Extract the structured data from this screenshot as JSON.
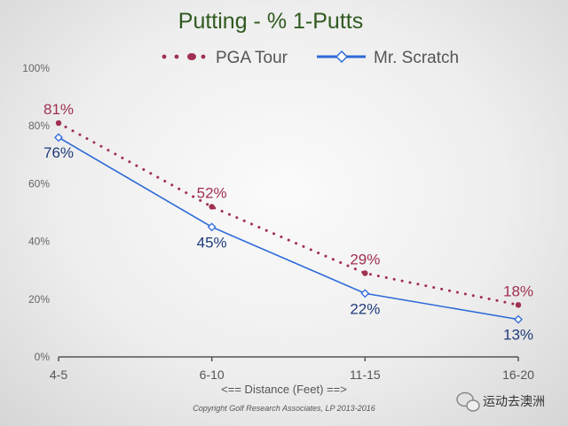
{
  "chart_data": {
    "type": "line",
    "title": "Putting - % 1-Putts",
    "categories": [
      "4-5",
      "6-10",
      "11-15",
      "16-20"
    ],
    "xlabel": "<== Distance (Feet) ==>",
    "ylabel": "",
    "ylim": [
      0,
      100
    ],
    "yticks": [
      "0%",
      "20%",
      "40%",
      "60%",
      "80%",
      "100%"
    ],
    "yticks_values": [
      0,
      20,
      40,
      60,
      80,
      100
    ],
    "series": [
      {
        "name": "PGA Tour",
        "values": [
          81,
          52,
          29,
          18
        ],
        "labels": [
          "81%",
          "52%",
          "29%",
          "18%"
        ],
        "color": "#a03050",
        "style": "dotted"
      },
      {
        "name": "Mr. Scratch",
        "values": [
          76,
          45,
          22,
          13
        ],
        "labels": [
          "76%",
          "45%",
          "22%",
          "13%"
        ],
        "color": "#2d6ad8",
        "style": "solid"
      }
    ],
    "legend_position": "top",
    "grid": false
  },
  "footer": {
    "copyright": "Copyright Golf Research Associates, LP 2013-2016"
  },
  "watermark": {
    "text": "运动去澳洲",
    "icon": "wechat-icon"
  }
}
